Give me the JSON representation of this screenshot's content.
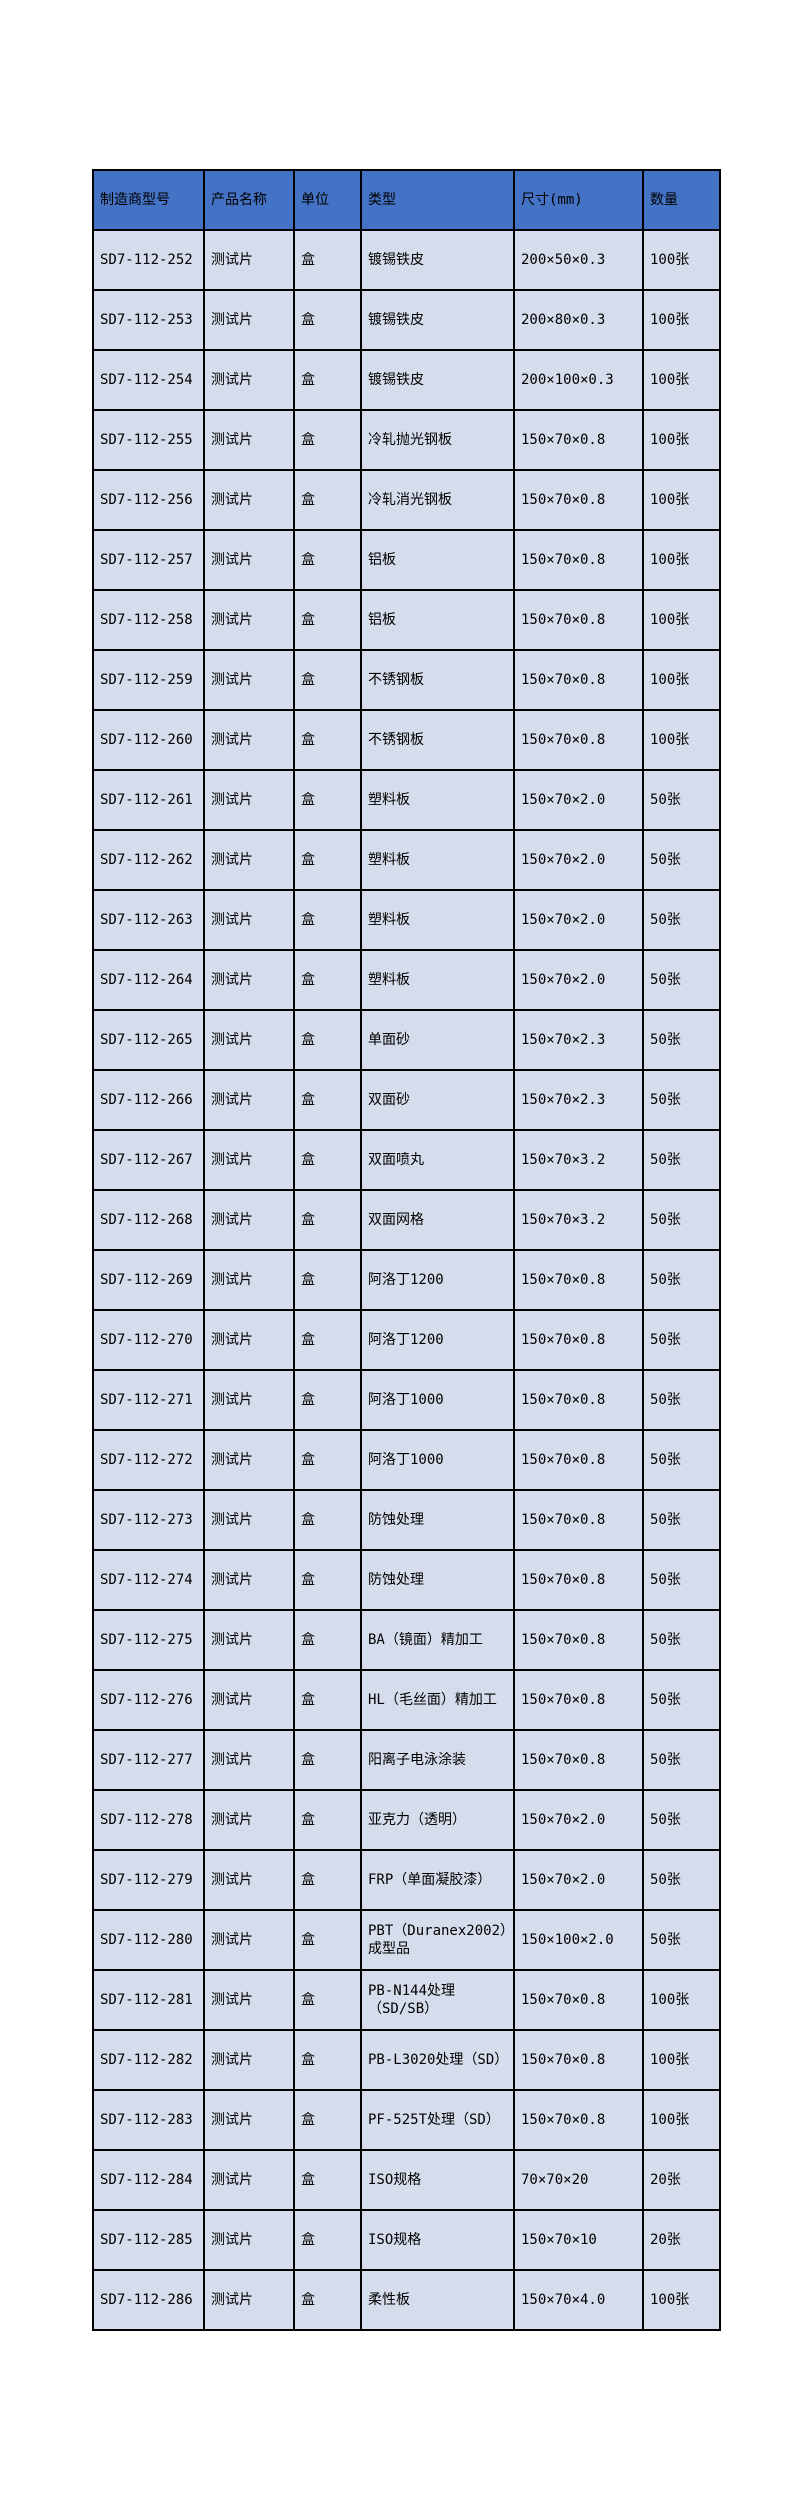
{
  "colors": {
    "header_bg": "#4472C4",
    "row_bg": "#D5DCEB",
    "border": "#000000",
    "text": "#000000",
    "page_bg": "#FFFFFF"
  },
  "table": {
    "headers": [
      "制造商型号",
      "产品名称",
      "单位",
      "类型",
      "尺寸(mm)",
      "数量"
    ],
    "rows": [
      {
        "model": "SD7-112-252",
        "name": "测试片",
        "unit": "盒",
        "type": "镀锡铁皮",
        "size": "200×50×0.3",
        "qty": "100张"
      },
      {
        "model": "SD7-112-253",
        "name": "测试片",
        "unit": "盒",
        "type": "镀锡铁皮",
        "size": "200×80×0.3",
        "qty": "100张"
      },
      {
        "model": "SD7-112-254",
        "name": "测试片",
        "unit": "盒",
        "type": "镀锡铁皮",
        "size": "200×100×0.3",
        "qty": "100张"
      },
      {
        "model": "SD7-112-255",
        "name": "测试片",
        "unit": "盒",
        "type": "冷轧抛光钢板",
        "size": "150×70×0.8",
        "qty": "100张"
      },
      {
        "model": "SD7-112-256",
        "name": "测试片",
        "unit": "盒",
        "type": "冷轧消光钢板",
        "size": "150×70×0.8",
        "qty": "100张"
      },
      {
        "model": "SD7-112-257",
        "name": "测试片",
        "unit": "盒",
        "type": "铝板",
        "size": "150×70×0.8",
        "qty": "100张"
      },
      {
        "model": "SD7-112-258",
        "name": "测试片",
        "unit": "盒",
        "type": "铝板",
        "size": "150×70×0.8",
        "qty": "100张"
      },
      {
        "model": "SD7-112-259",
        "name": "测试片",
        "unit": "盒",
        "type": "不锈钢板",
        "size": "150×70×0.8",
        "qty": "100张"
      },
      {
        "model": "SD7-112-260",
        "name": "测试片",
        "unit": "盒",
        "type": "不锈钢板",
        "size": "150×70×0.8",
        "qty": "100张"
      },
      {
        "model": "SD7-112-261",
        "name": "测试片",
        "unit": "盒",
        "type": "塑料板",
        "size": "150×70×2.0",
        "qty": "50张"
      },
      {
        "model": "SD7-112-262",
        "name": "测试片",
        "unit": "盒",
        "type": "塑料板",
        "size": "150×70×2.0",
        "qty": "50张"
      },
      {
        "model": "SD7-112-263",
        "name": "测试片",
        "unit": "盒",
        "type": "塑料板",
        "size": "150×70×2.0",
        "qty": "50张"
      },
      {
        "model": "SD7-112-264",
        "name": "测试片",
        "unit": "盒",
        "type": "塑料板",
        "size": "150×70×2.0",
        "qty": "50张"
      },
      {
        "model": "SD7-112-265",
        "name": "测试片",
        "unit": "盒",
        "type": "单面砂",
        "size": "150×70×2.3",
        "qty": "50张"
      },
      {
        "model": "SD7-112-266",
        "name": "测试片",
        "unit": "盒",
        "type": "双面砂",
        "size": "150×70×2.3",
        "qty": "50张"
      },
      {
        "model": "SD7-112-267",
        "name": "测试片",
        "unit": "盒",
        "type": "双面喷丸",
        "size": "150×70×3.2",
        "qty": "50张"
      },
      {
        "model": "SD7-112-268",
        "name": "测试片",
        "unit": "盒",
        "type": "双面网格",
        "size": "150×70×3.2",
        "qty": "50张"
      },
      {
        "model": "SD7-112-269",
        "name": "测试片",
        "unit": "盒",
        "type": "阿洛丁1200",
        "size": "150×70×0.8",
        "qty": "50张"
      },
      {
        "model": "SD7-112-270",
        "name": "测试片",
        "unit": "盒",
        "type": "阿洛丁1200",
        "size": "150×70×0.8",
        "qty": "50张"
      },
      {
        "model": "SD7-112-271",
        "name": "测试片",
        "unit": "盒",
        "type": "阿洛丁1000",
        "size": "150×70×0.8",
        "qty": "50张"
      },
      {
        "model": "SD7-112-272",
        "name": "测试片",
        "unit": "盒",
        "type": "阿洛丁1000",
        "size": "150×70×0.8",
        "qty": "50张"
      },
      {
        "model": "SD7-112-273",
        "name": "测试片",
        "unit": "盒",
        "type": "防蚀处理",
        "size": "150×70×0.8",
        "qty": "50张"
      },
      {
        "model": "SD7-112-274",
        "name": "测试片",
        "unit": "盒",
        "type": "防蚀处理",
        "size": "150×70×0.8",
        "qty": "50张"
      },
      {
        "model": "SD7-112-275",
        "name": "测试片",
        "unit": "盒",
        "type": "BA（镜面）精加工",
        "size": "150×70×0.8",
        "qty": "50张"
      },
      {
        "model": "SD7-112-276",
        "name": "测试片",
        "unit": "盒",
        "type": "HL（毛丝面）精加工",
        "size": "150×70×0.8",
        "qty": "50张"
      },
      {
        "model": "SD7-112-277",
        "name": "测试片",
        "unit": "盒",
        "type": "阳离子电泳涂装",
        "size": "150×70×0.8",
        "qty": "50张"
      },
      {
        "model": "SD7-112-278",
        "name": "测试片",
        "unit": "盒",
        "type": "亚克力（透明）",
        "size": "150×70×2.0",
        "qty": "50张"
      },
      {
        "model": "SD7-112-279",
        "name": "测试片",
        "unit": "盒",
        "type": "FRP（单面凝胶漆）",
        "size": "150×70×2.0",
        "qty": "50张"
      },
      {
        "model": "SD7-112-280",
        "name": "测试片",
        "unit": "盒",
        "type": "PBT（Duranex2002）成型品",
        "size": "150×100×2.0",
        "qty": "50张"
      },
      {
        "model": "SD7-112-281",
        "name": "测试片",
        "unit": "盒",
        "type": "PB-N144处理（SD/SB）",
        "size": "150×70×0.8",
        "qty": "100张"
      },
      {
        "model": "SD7-112-282",
        "name": "测试片",
        "unit": "盒",
        "type": "PB-L3020处理（SD）",
        "size": "150×70×0.8",
        "qty": "100张"
      },
      {
        "model": "SD7-112-283",
        "name": "测试片",
        "unit": "盒",
        "type": "PF-525T处理（SD）",
        "size": "150×70×0.8",
        "qty": "100张"
      },
      {
        "model": "SD7-112-284",
        "name": "测试片",
        "unit": "盒",
        "type": "ISO规格",
        "size": "70×70×20",
        "qty": "20张"
      },
      {
        "model": "SD7-112-285",
        "name": "测试片",
        "unit": "盒",
        "type": "ISO规格",
        "size": "150×70×10",
        "qty": "20张"
      },
      {
        "model": "SD7-112-286",
        "name": "测试片",
        "unit": "盒",
        "type": "柔性板",
        "size": "150×70×4.0",
        "qty": "100张"
      }
    ]
  }
}
